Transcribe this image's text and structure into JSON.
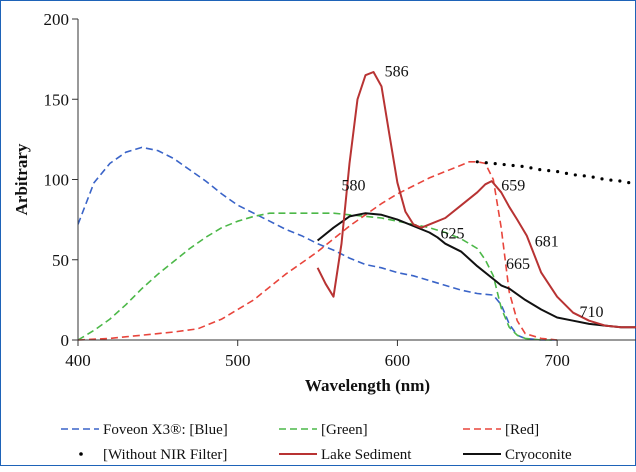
{
  "chart_data": {
    "type": "line",
    "xlabel": "Wavelength (nm)",
    "ylabel": "Arbitrary",
    "xlim": [
      400,
      750
    ],
    "ylim": [
      0,
      200
    ],
    "x_ticks": [
      400,
      500,
      600,
      700
    ],
    "y_ticks": [
      0,
      50,
      100,
      150,
      200
    ],
    "grid": false,
    "legend_position": "bottom",
    "series": [
      {
        "name": "Foveon X3®: [Blue]",
        "color": "#3a64c8",
        "style": "dashed",
        "x": [
          400,
          410,
          420,
          430,
          440,
          450,
          460,
          470,
          480,
          490,
          500,
          510,
          520,
          530,
          540,
          550,
          560,
          570,
          580,
          590,
          600,
          610,
          620,
          630,
          640,
          650,
          660,
          665,
          670,
          675,
          680,
          690,
          700
        ],
        "y": [
          72,
          98,
          110,
          117,
          120,
          118,
          113,
          106,
          99,
          91,
          84,
          79,
          74,
          69,
          65,
          60,
          56,
          51,
          47,
          45,
          42,
          40,
          37,
          34,
          31,
          29,
          28,
          22,
          10,
          3,
          1,
          0,
          0
        ]
      },
      {
        "name": "[Green]",
        "color": "#4cb848",
        "style": "dashed",
        "x": [
          400,
          410,
          420,
          430,
          440,
          450,
          460,
          470,
          480,
          490,
          500,
          510,
          520,
          530,
          540,
          550,
          560,
          570,
          580,
          590,
          600,
          610,
          620,
          630,
          640,
          650,
          655,
          660,
          665,
          670,
          675,
          680,
          690,
          700
        ],
        "y": [
          0,
          6,
          13,
          22,
          32,
          41,
          49,
          57,
          64,
          70,
          74,
          77,
          79,
          79,
          79,
          79,
          79,
          78,
          77,
          76,
          74,
          72,
          70,
          67,
          63,
          57,
          50,
          40,
          20,
          8,
          3,
          1,
          0,
          0
        ]
      },
      {
        "name": "[Red]",
        "color": "#e8453c",
        "style": "dashed",
        "x": [
          400,
          420,
          440,
          460,
          475,
          490,
          500,
          510,
          520,
          530,
          540,
          550,
          560,
          570,
          580,
          590,
          600,
          610,
          620,
          630,
          640,
          645,
          650,
          655,
          660,
          665,
          670,
          675,
          680,
          690,
          700
        ],
        "y": [
          0,
          1,
          3,
          5,
          7,
          13,
          19,
          25,
          33,
          41,
          48,
          55,
          63,
          71,
          78,
          85,
          91,
          96,
          101,
          105,
          109,
          111,
          111,
          110,
          100,
          70,
          30,
          12,
          4,
          1,
          0
        ]
      },
      {
        "name": "[Without NIR Filter]",
        "color": "#000000",
        "style": "dotted",
        "x": [
          650,
          660,
          670,
          680,
          690,
          700,
          710,
          720,
          730,
          740,
          750
        ],
        "y": [
          111,
          110,
          109,
          108,
          106,
          105,
          103,
          102,
          100,
          99,
          97
        ]
      },
      {
        "name": "Lake Sediment",
        "color": "#b83333",
        "style": "solid",
        "x": [
          550,
          555,
          560,
          565,
          570,
          575,
          580,
          585,
          590,
          595,
          600,
          605,
          610,
          615,
          620,
          630,
          640,
          650,
          655,
          659,
          665,
          670,
          675,
          681,
          690,
          700,
          710,
          720,
          730,
          740,
          750
        ],
        "y": [
          45,
          35,
          27,
          60,
          110,
          150,
          165,
          167,
          158,
          128,
          98,
          80,
          72,
          70,
          72,
          76,
          84,
          92,
          97,
          99,
          92,
          83,
          75,
          65,
          42,
          27,
          17,
          12,
          9,
          8,
          8
        ]
      },
      {
        "name": "Cryoconite",
        "color": "#111111",
        "style": "solid",
        "x": [
          550,
          560,
          570,
          580,
          590,
          600,
          610,
          620,
          625,
          630,
          640,
          650,
          660,
          665,
          670,
          680,
          690,
          700,
          710,
          720,
          730,
          740,
          750
        ],
        "y": [
          62,
          70,
          77,
          79,
          78,
          75,
          71,
          67,
          64,
          60,
          55,
          46,
          38,
          34,
          32,
          25,
          19,
          14,
          12,
          10,
          9,
          8,
          8
        ]
      }
    ],
    "annotations": [
      {
        "text": "586",
        "x": 592,
        "y": 168
      },
      {
        "text": "580",
        "x": 565,
        "y": 97
      },
      {
        "text": "659",
        "x": 665,
        "y": 97
      },
      {
        "text": "625",
        "x": 627,
        "y": 67
      },
      {
        "text": "681",
        "x": 686,
        "y": 62
      },
      {
        "text": "665",
        "x": 668,
        "y": 48
      },
      {
        "text": "710",
        "x": 714,
        "y": 18
      }
    ]
  }
}
